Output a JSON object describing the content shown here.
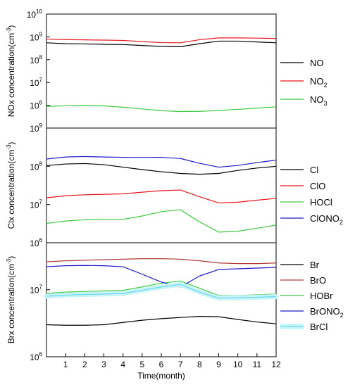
{
  "chart_data": {
    "type": "line",
    "xlabel": "Time(month)",
    "x_ticks": [
      "1",
      "2",
      "3",
      "4",
      "5",
      "6",
      "7",
      "8",
      "9",
      "10",
      "11",
      "12"
    ],
    "xlim": [
      0,
      12
    ],
    "panels": [
      {
        "ylabel": "NOx concentration(cm-3)",
        "ylabel_main": "NOx concentration(cm",
        "ylabel_sup": "-3",
        "ylabel_close": ")",
        "log_scale": true,
        "ylim_exp": [
          5,
          10
        ],
        "yticks": [
          {
            "base": "10",
            "exp": "10"
          },
          {
            "base": "10",
            "exp": "9"
          },
          {
            "base": "10",
            "exp": "8"
          },
          {
            "base": "10",
            "exp": "7"
          },
          {
            "base": "10",
            "exp": "6"
          }
        ],
        "x": [
          0,
          1,
          2,
          3,
          4,
          5,
          6,
          7,
          8,
          9,
          10,
          11,
          12
        ],
        "series": [
          {
            "name": "NO",
            "label_main": "NO",
            "label_sub": "",
            "color": "#000000",
            "width": 1.2,
            "values": [
              550000000.0,
              500000000.0,
              490000000.0,
              470000000.0,
              460000000.0,
              420000000.0,
              380000000.0,
              370000000.0,
              500000000.0,
              650000000.0,
              650000000.0,
              600000000.0,
              550000000.0
            ]
          },
          {
            "name": "NO2",
            "label_main": "NO",
            "label_sub": "2",
            "color": "#e8161a",
            "width": 1.2,
            "values": [
              800000000.0,
              760000000.0,
              740000000.0,
              720000000.0,
              700000000.0,
              620000000.0,
              560000000.0,
              550000000.0,
              750000000.0,
              900000000.0,
              900000000.0,
              880000000.0,
              850000000.0
            ]
          },
          {
            "name": "NO3",
            "label_main": "NO",
            "label_sub": "3",
            "color": "#3ec93e",
            "width": 1.2,
            "values": [
              880000.0,
              950000.0,
              980000.0,
              940000.0,
              820000.0,
              690000.0,
              580000.0,
              530000.0,
              540000.0,
              590000.0,
              660000.0,
              750000.0,
              850000.0
            ]
          }
        ]
      },
      {
        "ylabel": "Clx concentration(cm-3)",
        "ylabel_main": "Clx concentration(cm",
        "ylabel_sup": "-3",
        "ylabel_close": ")",
        "log_scale": true,
        "ylim_exp": [
          6,
          9
        ],
        "yticks": [
          {
            "base": "10",
            "exp": "9"
          },
          {
            "base": "10",
            "exp": "8"
          },
          {
            "base": "10",
            "exp": "7"
          },
          {
            "base": "10",
            "exp": "6"
          }
        ],
        "x": [
          0,
          1,
          2,
          3,
          4,
          5,
          6,
          7,
          8,
          9,
          10,
          11,
          12
        ],
        "series": [
          {
            "name": "Cl",
            "label_main": "Cl",
            "label_sub": "",
            "color": "#000000",
            "width": 1.2,
            "values": [
              105000000.0,
              115000000.0,
              118000000.0,
              110000000.0,
              95000000.0,
              82000000.0,
              72000000.0,
              65000000.0,
              62000000.0,
              65000000.0,
              78000000.0,
              90000000.0,
              100000000.0
            ]
          },
          {
            "name": "ClO",
            "label_main": "ClO",
            "label_sub": "",
            "color": "#e8161a",
            "width": 1.2,
            "values": [
              15000000.0,
              17000000.0,
              18000000.0,
              18500000.0,
              19000000.0,
              21000000.0,
              23000000.0,
              24000000.0,
              16000000.0,
              11000000.0,
              11500000.0,
              13000000.0,
              14500000.0
            ]
          },
          {
            "name": "HOCl",
            "label_main": "HOCl",
            "label_sub": "",
            "color": "#3ec93e",
            "width": 1.2,
            "values": [
              3200000.0,
              3700000.0,
              4000000.0,
              4100000.0,
              4100000.0,
              5000000.0,
              6500000.0,
              7300000.0,
              3500000.0,
              1900000.0,
              2000000.0,
              2400000.0,
              2900000.0
            ]
          },
          {
            "name": "ClONO2",
            "label_main": "ClONO",
            "label_sub": "2",
            "color": "#1a1acc",
            "width": 1.2,
            "values": [
              155000000.0,
              175000000.0,
              180000000.0,
              175000000.0,
              172000000.0,
              170000000.0,
              172000000.0,
              160000000.0,
              120000000.0,
              95000000.0,
              105000000.0,
              125000000.0,
              145000000.0
            ]
          }
        ]
      },
      {
        "ylabel": "Brx concentration(cm-3)",
        "ylabel_main": "Brx concentration(cm",
        "ylabel_sup": "-3",
        "ylabel_close": ")",
        "log_scale": true,
        "ylim_exp": [
          6,
          7.7
        ],
        "yticks": [
          {
            "base": "10",
            "exp": "7"
          },
          {
            "base": "10",
            "exp": "6"
          }
        ],
        "x": [
          0,
          1,
          2,
          3,
          4,
          5,
          6,
          7,
          8,
          9,
          10,
          11,
          12
        ],
        "series": [
          {
            "name": "Br",
            "label_main": "Br",
            "label_sub": "",
            "color": "#000000",
            "width": 1.2,
            "values": [
              3000000.0,
              2950000.0,
              2950000.0,
              3000000.0,
              3250000.0,
              3500000.0,
              3700000.0,
              3850000.0,
              4000000.0,
              3950000.0,
              3600000.0,
              3300000.0,
              3100000.0
            ]
          },
          {
            "name": "BrO",
            "label_main": "BrO",
            "label_sub": "",
            "color": "#b23a3a",
            "width": 1.2,
            "values": [
              26000000.0,
              27000000.0,
              27500000.0,
              28000000.0,
              28500000.0,
              29000000.0,
              29000000.0,
              28500000.0,
              27000000.0,
              25000000.0,
              24500000.0,
              24500000.0,
              25000000.0
            ]
          },
          {
            "name": "HOBr",
            "label_main": "HOBr",
            "label_sub": "",
            "color": "#3ec93e",
            "width": 1.2,
            "values": [
              8800000.0,
              9200000.0,
              9400000.0,
              9600000.0,
              9800000.0,
              11000000.0,
              12500000.0,
              13500000.0,
              10500000.0,
              8200000.0,
              8200000.0,
              8400000.0,
              8600000.0
            ]
          },
          {
            "name": "BrONO2",
            "label_main": "BrONO",
            "label_sub": "2",
            "color": "#1a1acc",
            "width": 1.2,
            "values": [
              22000000.0,
              22800000.0,
              23000000.0,
              22800000.0,
              22000000.0,
              17000000.0,
              13000000.0,
              11000000.0,
              16000000.0,
              20000000.0,
              20500000.0,
              21000000.0,
              21500000.0
            ]
          },
          {
            "name": "BrCl",
            "label_main": "BrCl",
            "label_sub": "",
            "color": "#66d9ec",
            "band_color": "#c8f3f8",
            "width": 1.2,
            "values": [
              8000000.0,
              8300000.0,
              8500000.0,
              8600000.0,
              8800000.0,
              9800000.0,
              11000000.0,
              12000000.0,
              9200000.0,
              7500000.0,
              7600000.0,
              7700000.0,
              7900000.0
            ]
          }
        ]
      }
    ]
  }
}
